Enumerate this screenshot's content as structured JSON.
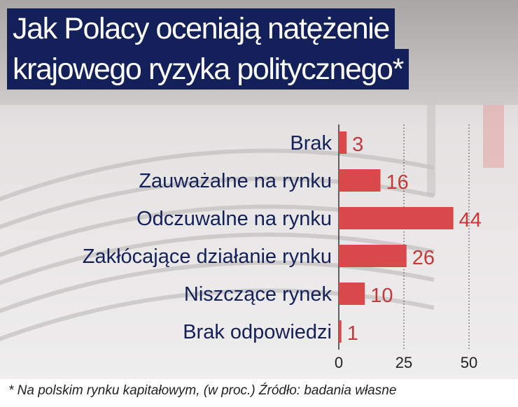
{
  "title_lines": [
    "Jak Polacy oceniają natężenie",
    "krajowego ryzyka politycznego*"
  ],
  "footnote": "* Na polskim rynku kapitałowym, (w proc.) Źródło: badania własne",
  "colors": {
    "title_bg": "#14205a",
    "bar": "#d9484a",
    "value_text": "#c8383a",
    "label_text": "#14205a"
  },
  "chart_data": {
    "type": "bar",
    "orientation": "horizontal",
    "categories": [
      "Brak",
      "Zauważalne na rynku",
      "Odczuwalne na rynku",
      "Zakłócające działanie rynku",
      "Niszczące rynek",
      "Brak odpowiedzi"
    ],
    "values": [
      3,
      16,
      44,
      26,
      10,
      1
    ],
    "xlim": [
      0,
      55
    ],
    "xticks": [
      0,
      25,
      50
    ],
    "grid": true,
    "background": "photo of parliament hall"
  }
}
